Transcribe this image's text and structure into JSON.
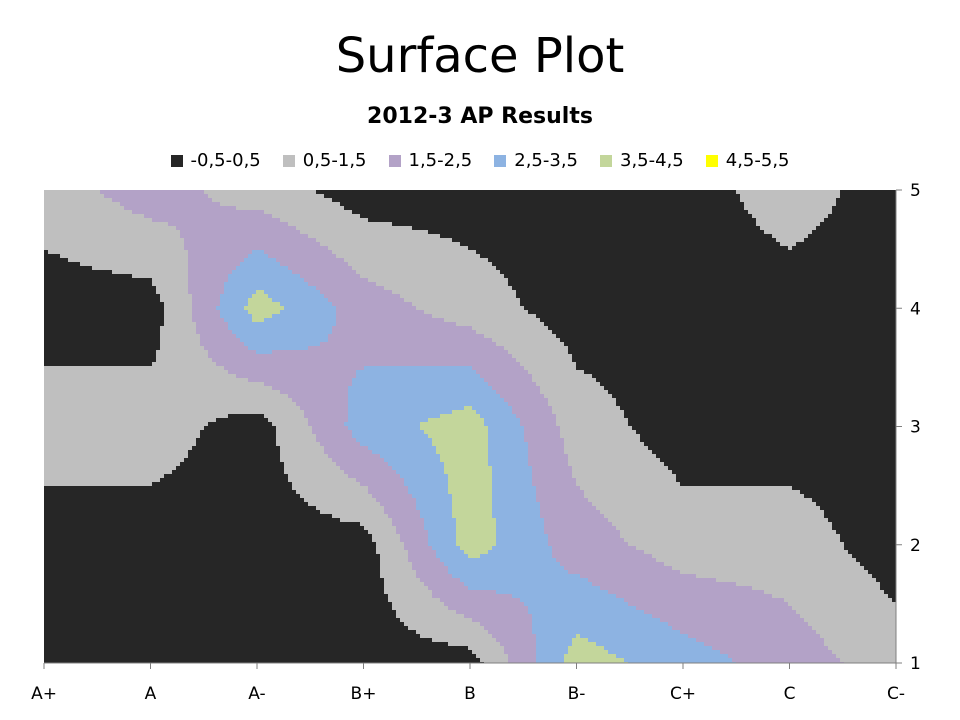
{
  "slide": {
    "title": "Surface Plot"
  },
  "chart_data": {
    "type": "heatmap",
    "subtype": "contour-surface",
    "title": "2012-3 AP Results",
    "xlabel": "",
    "ylabel": "",
    "legend_position": "top",
    "categories": [
      "A+",
      "A",
      "A-",
      "B+",
      "B",
      "B-",
      "C+",
      "C",
      "C-"
    ],
    "y_ticks": [
      "1",
      "2",
      "3",
      "4",
      "5"
    ],
    "ylim": [
      1,
      5
    ],
    "bands": [
      {
        "label": "-0,5-0,5",
        "min": -0.5,
        "max": 0.5,
        "color": "#262626"
      },
      {
        "label": "0,5-1,5",
        "min": 0.5,
        "max": 1.5,
        "color": "#bfbfbf"
      },
      {
        "label": "1,5-2,5",
        "min": 1.5,
        "max": 2.5,
        "color": "#b3a2c7"
      },
      {
        "label": "2,5-3,5",
        "min": 2.5,
        "max": 3.5,
        "color": "#8db3e2"
      },
      {
        "label": "3,5-4,5",
        "min": 3.5,
        "max": 4.5,
        "color": "#c3d69b"
      },
      {
        "label": "4,5-5,5",
        "min": 4.5,
        "max": 5.5,
        "color": "#ffff00"
      }
    ],
    "grid": [
      [
        0,
        0,
        0,
        0,
        0,
        4,
        3,
        2,
        1
      ],
      [
        0,
        0,
        0,
        0,
        4,
        2,
        1,
        1,
        0
      ],
      [
        1,
        1,
        0,
        3,
        4,
        1,
        0,
        0,
        0
      ],
      [
        0,
        0,
        4,
        2,
        1,
        0,
        0,
        0,
        0
      ],
      [
        1,
        2,
        1,
        0,
        0,
        0,
        0,
        1,
        0
      ]
    ]
  }
}
